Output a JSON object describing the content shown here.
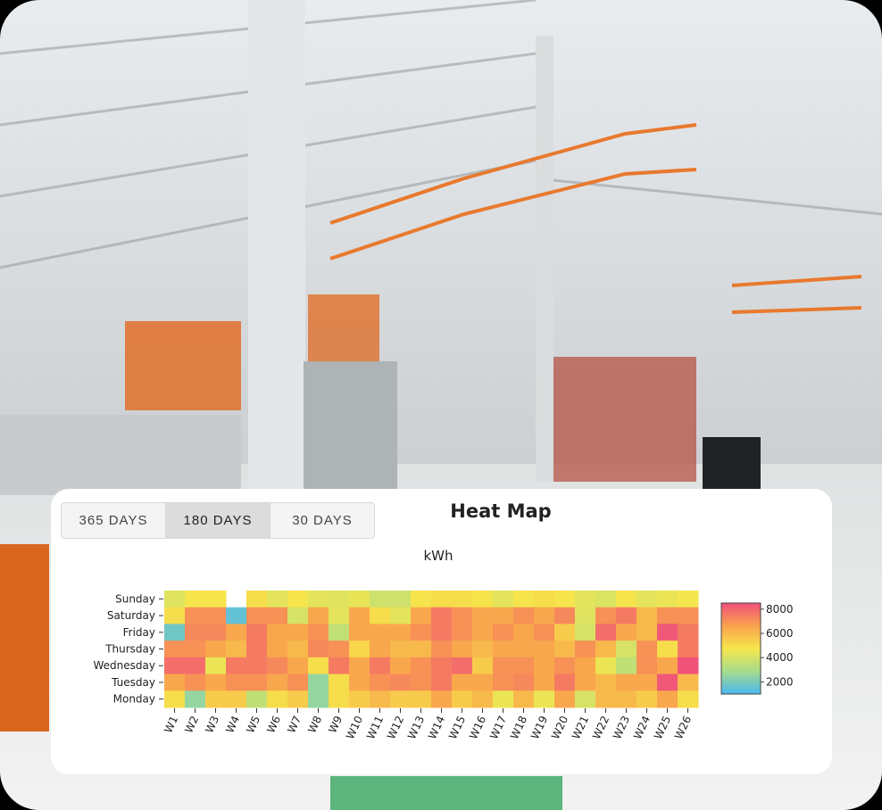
{
  "buttons": {
    "items": [
      "365 DAYS",
      "180 DAYS",
      "30 DAYS"
    ],
    "active": 1
  },
  "chart_data": {
    "type": "heatmap",
    "title": "Heat Map",
    "subtitle": "kWh",
    "categories": [
      "W1",
      "W2",
      "W3",
      "W4",
      "W5",
      "W6",
      "W7",
      "W8",
      "W9",
      "W10",
      "W11",
      "W12",
      "W13",
      "W14",
      "W15",
      "W16",
      "W17",
      "W18",
      "W19",
      "W20",
      "W21",
      "W22",
      "W23",
      "W24",
      "W25",
      "W26"
    ],
    "series": [
      {
        "name": "Sunday",
        "values": [
          4200,
          4800,
          4800,
          null,
          5000,
          4300,
          4800,
          4300,
          4200,
          4400,
          3800,
          3800,
          4800,
          5000,
          5000,
          4800,
          4300,
          4800,
          5000,
          4800,
          4300,
          4100,
          4800,
          4300,
          4500,
          4700
        ]
      },
      {
        "name": "Saturday",
        "values": [
          5000,
          7000,
          7000,
          1500,
          7000,
          7000,
          4000,
          6500,
          4300,
          6500,
          5000,
          4300,
          6500,
          7500,
          7000,
          6500,
          6500,
          7000,
          6500,
          7200,
          4200,
          7000,
          7500,
          6000,
          7000,
          7000
        ]
      },
      {
        "name": "Friday",
        "values": [
          1800,
          7200,
          7200,
          6500,
          7500,
          6500,
          6500,
          7000,
          3500,
          6500,
          6500,
          6500,
          7000,
          7500,
          7000,
          6500,
          7000,
          6500,
          7000,
          5500,
          4000,
          7800,
          6500,
          6000,
          8300,
          7500
        ]
      },
      {
        "name": "Thursday",
        "values": [
          7000,
          7000,
          6500,
          6000,
          7500,
          6500,
          6000,
          7200,
          7000,
          5200,
          6500,
          6000,
          6000,
          7000,
          6500,
          6000,
          6500,
          6500,
          6500,
          6000,
          7000,
          6000,
          4000,
          7000,
          5000,
          7500
        ]
      },
      {
        "name": "Wednesday",
        "values": [
          7800,
          7800,
          4500,
          7500,
          7500,
          7200,
          6500,
          5000,
          7500,
          6500,
          7500,
          6500,
          7000,
          7500,
          7800,
          5500,
          7000,
          7000,
          6500,
          7000,
          6500,
          4500,
          3500,
          7000,
          6500,
          8400
        ]
      },
      {
        "name": "Tuesday",
        "values": [
          6500,
          7000,
          6500,
          7000,
          7000,
          6500,
          7000,
          2500,
          5000,
          6500,
          7000,
          7200,
          7000,
          7500,
          6500,
          6500,
          7000,
          7200,
          6500,
          7500,
          6500,
          6000,
          6500,
          6500,
          8300,
          6000
        ]
      },
      {
        "name": "Monday",
        "values": [
          5000,
          2500,
          5500,
          5500,
          3500,
          5000,
          5500,
          2500,
          5000,
          5500,
          6000,
          5500,
          5500,
          6500,
          5500,
          6000,
          4500,
          6000,
          4500,
          6500,
          4000,
          6000,
          6000,
          5500,
          6500,
          5000
        ]
      }
    ],
    "zlim": [
      1000,
      8500
    ],
    "colorbar_ticks": [
      2000,
      4000,
      6000,
      8000
    ],
    "colorscale": [
      "#4ab8f0",
      "#a6dc8c",
      "#f6e64c",
      "#f9a24c",
      "#ef4f7c"
    ]
  }
}
